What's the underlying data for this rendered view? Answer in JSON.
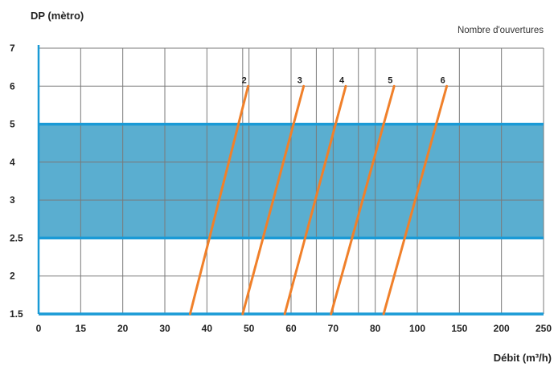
{
  "chart_data": {
    "type": "line",
    "ylabel": "DP (mètro)",
    "xlabel": "Débit  (m³/h)",
    "legend_title": "Nombre d'ouvertures",
    "x_ticks": [
      "0",
      "15",
      "20",
      "30",
      "40",
      "50",
      "60",
      "70",
      "80",
      "100",
      "150",
      "200",
      "250"
    ],
    "x_tick_positions": [
      0,
      1,
      2,
      3,
      4,
      5,
      6,
      7,
      8,
      9,
      10,
      11,
      12
    ],
    "extra_grid_x": [
      4.85,
      6.6,
      7.6
    ],
    "xlim": [
      0,
      12
    ],
    "y_ticks": [
      "1.5",
      "2",
      "2.5",
      "3",
      "4",
      "5",
      "6",
      "7"
    ],
    "y_tick_positions": [
      0,
      1,
      2,
      3,
      4,
      5,
      6,
      7
    ],
    "ylim": [
      0,
      7
    ],
    "band": {
      "from": "2.5",
      "to": "5",
      "color": "#5aaed0",
      "border": "#1a9ad6"
    },
    "line_color": "#f0802a",
    "series": [
      {
        "name": "2",
        "points": [
          [
            3.6,
            0
          ],
          [
            4.98,
            6
          ]
        ]
      },
      {
        "name": "3",
        "points": [
          [
            4.85,
            0
          ],
          [
            6.3,
            6
          ]
        ]
      },
      {
        "name": "4",
        "points": [
          [
            5.85,
            0
          ],
          [
            7.3,
            6
          ]
        ]
      },
      {
        "name": "5",
        "points": [
          [
            6.95,
            0
          ],
          [
            8.45,
            6
          ]
        ]
      },
      {
        "name": "6",
        "points": [
          [
            8.2,
            0
          ],
          [
            9.7,
            6
          ]
        ]
      }
    ]
  }
}
